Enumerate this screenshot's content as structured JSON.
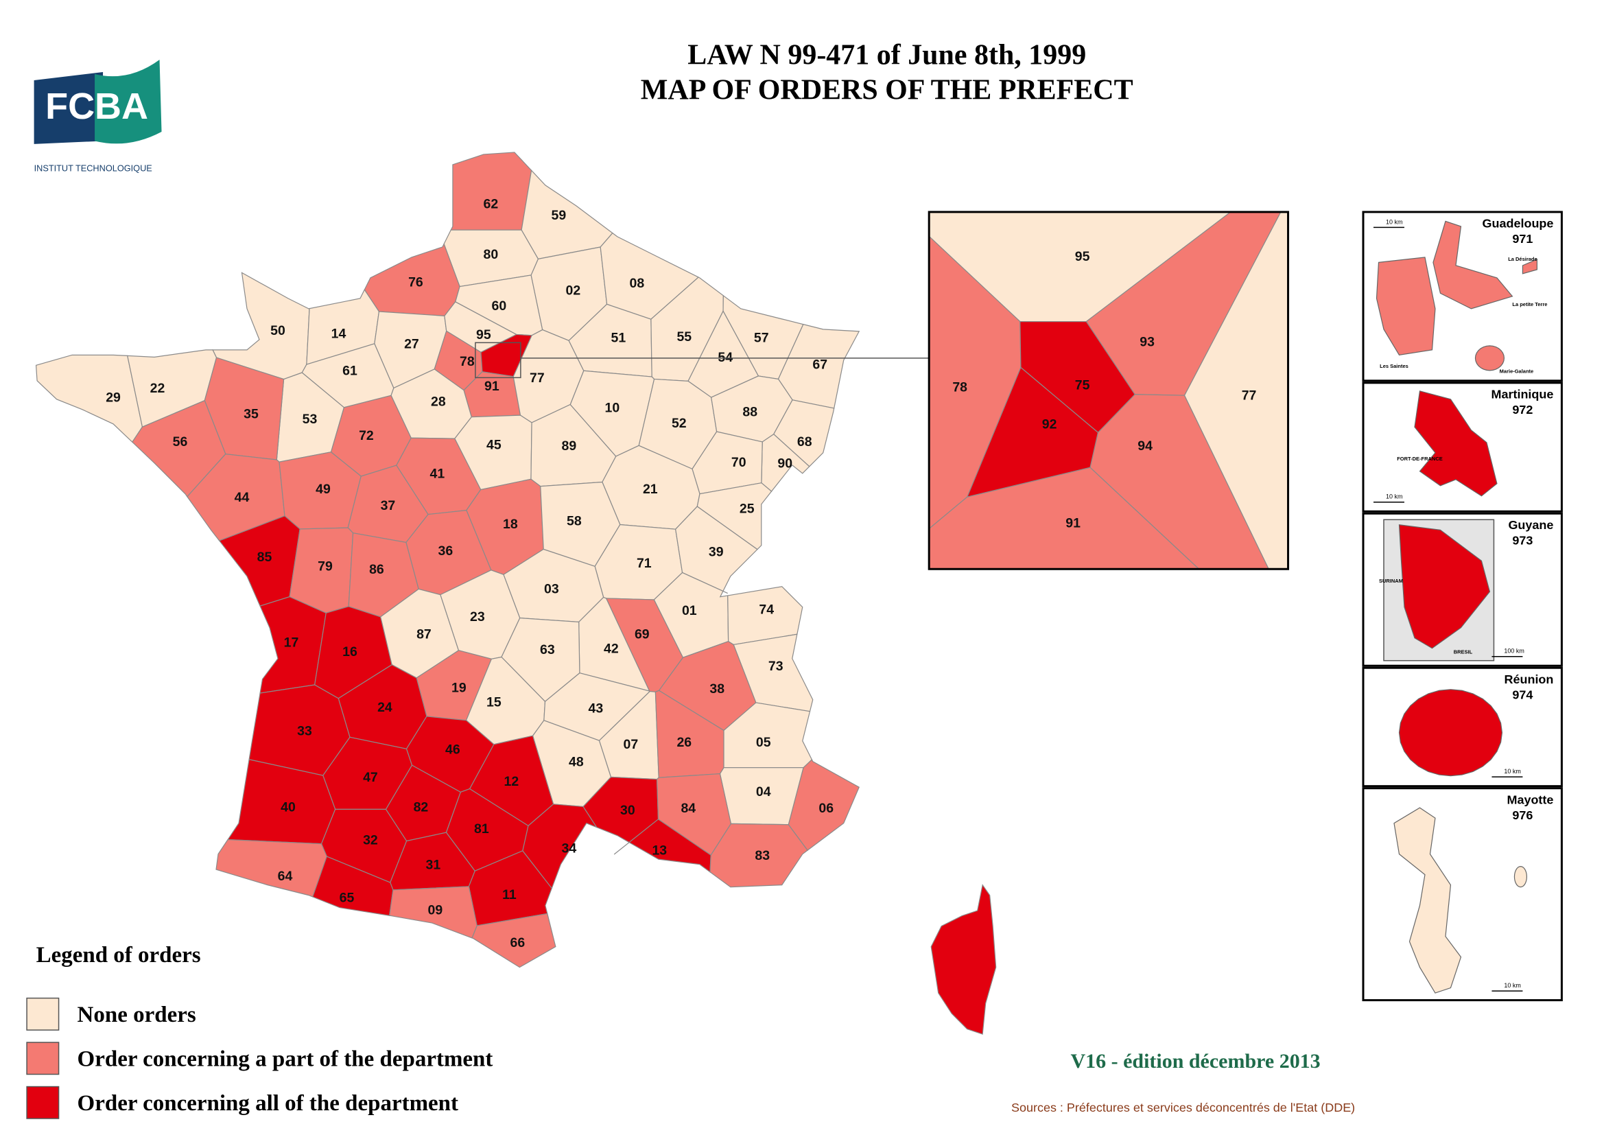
{
  "logo": {
    "name": "FCBA",
    "subtitle": "INSTITUT  TECHNOLOGIQUE"
  },
  "title": [
    "LAW N 99-471 of June 8th, 1999",
    "MAP OF ORDERS OF THE PREFECT"
  ],
  "legend": {
    "title": "Legend of orders",
    "items": [
      {
        "label": "None orders",
        "color": "#fde8d2"
      },
      {
        "label": "Order concerning a part of the department",
        "color": "#f47a72"
      },
      {
        "label": "Order concerning all of the department",
        "color": "#e2000f"
      }
    ]
  },
  "map": {
    "departments": [
      {
        "code": "62",
        "order": 1
      },
      {
        "code": "59",
        "order": 0
      },
      {
        "code": "80",
        "order": 0
      },
      {
        "code": "76",
        "order": 1
      },
      {
        "code": "60",
        "order": 0
      },
      {
        "code": "02",
        "order": 0
      },
      {
        "code": "08",
        "order": 0
      },
      {
        "code": "50",
        "order": 0
      },
      {
        "code": "14",
        "order": 0
      },
      {
        "code": "27",
        "order": 0
      },
      {
        "code": "95",
        "order": 0
      },
      {
        "code": "78",
        "order": 1
      },
      {
        "code": null,
        "order": 2
      },
      {
        "code": "91",
        "order": 1
      },
      {
        "code": "77",
        "order": 0
      },
      {
        "code": "51",
        "order": 0
      },
      {
        "code": "55",
        "order": 0
      },
      {
        "code": "57",
        "order": 0
      },
      {
        "code": "54",
        "order": 0
      },
      {
        "code": "67",
        "order": 0
      },
      {
        "code": "29",
        "order": 0
      },
      {
        "code": "22",
        "order": 0
      },
      {
        "code": "61",
        "order": 0
      },
      {
        "code": "28",
        "order": 0
      },
      {
        "code": "53",
        "order": 0
      },
      {
        "code": "35",
        "order": 1
      },
      {
        "code": "56",
        "order": 1
      },
      {
        "code": "72",
        "order": 1
      },
      {
        "code": "45",
        "order": 0
      },
      {
        "code": "89",
        "order": 0
      },
      {
        "code": "10",
        "order": 0
      },
      {
        "code": "52",
        "order": 0
      },
      {
        "code": "88",
        "order": 0
      },
      {
        "code": "68",
        "order": 0
      },
      {
        "code": "90",
        "order": 0
      },
      {
        "code": "70",
        "order": 0
      },
      {
        "code": "44",
        "order": 1
      },
      {
        "code": "49",
        "order": 1
      },
      {
        "code": "37",
        "order": 1
      },
      {
        "code": "41",
        "order": 1
      },
      {
        "code": "18",
        "order": 1
      },
      {
        "code": "21",
        "order": 0
      },
      {
        "code": "25",
        "order": 0
      },
      {
        "code": "85",
        "order": 2
      },
      {
        "code": "79",
        "order": 1
      },
      {
        "code": "86",
        "order": 1
      },
      {
        "code": "36",
        "order": 1
      },
      {
        "code": "58",
        "order": 0
      },
      {
        "code": "71",
        "order": 0
      },
      {
        "code": "39",
        "order": 0
      },
      {
        "code": "17",
        "order": 2
      },
      {
        "code": "16",
        "order": 2
      },
      {
        "code": "87",
        "order": 0
      },
      {
        "code": "23",
        "order": 0
      },
      {
        "code": "03",
        "order": 0
      },
      {
        "code": "01",
        "order": 0
      },
      {
        "code": "74",
        "order": 0
      },
      {
        "code": "69",
        "order": 1
      },
      {
        "code": "42",
        "order": 0
      },
      {
        "code": "63",
        "order": 0
      },
      {
        "code": "73",
        "order": 0
      },
      {
        "code": "38",
        "order": 1
      },
      {
        "code": "19",
        "order": 1
      },
      {
        "code": "24",
        "order": 2
      },
      {
        "code": "15",
        "order": 0
      },
      {
        "code": "43",
        "order": 0
      },
      {
        "code": "33",
        "order": 2
      },
      {
        "code": "46",
        "order": 2
      },
      {
        "code": "07",
        "order": 0
      },
      {
        "code": "26",
        "order": 1
      },
      {
        "code": "05",
        "order": 0
      },
      {
        "code": "48",
        "order": 0
      },
      {
        "code": "47",
        "order": 2
      },
      {
        "code": "12",
        "order": 2
      },
      {
        "code": "04",
        "order": 0
      },
      {
        "code": "40",
        "order": 2
      },
      {
        "code": "82",
        "order": 2
      },
      {
        "code": "30",
        "order": 2
      },
      {
        "code": "84",
        "order": 1
      },
      {
        "code": "06",
        "order": 1
      },
      {
        "code": "81",
        "order": 2
      },
      {
        "code": "32",
        "order": 2
      },
      {
        "code": "34",
        "order": 2
      },
      {
        "code": "13",
        "order": 2
      },
      {
        "code": "83",
        "order": 1
      },
      {
        "code": "31",
        "order": 2
      },
      {
        "code": "64",
        "order": 1
      },
      {
        "code": "11",
        "order": 2
      },
      {
        "code": "65",
        "order": 2
      },
      {
        "code": "09",
        "order": 1
      },
      {
        "code": "66",
        "order": 1
      }
    ],
    "corsica": {
      "order": 2
    }
  },
  "inset": {
    "departments": [
      {
        "code": "95",
        "order": 0
      },
      {
        "code": "77",
        "order": 0
      },
      {
        "code": "78",
        "order": 1
      },
      {
        "code": "93",
        "order": 1
      },
      {
        "code": "94",
        "order": 1
      },
      {
        "code": "91",
        "order": 1
      },
      {
        "code": "75",
        "order": 2
      },
      {
        "code": "92",
        "order": 2
      }
    ]
  },
  "overseas": [
    {
      "name": "Guadeloupe",
      "code": "971",
      "order": 1,
      "scale": "10 km",
      "places": [
        "La Désirade",
        "La petite Terre",
        "Les Saintes",
        "Marie-Galante"
      ]
    },
    {
      "name": "Martinique",
      "code": "972",
      "order": 2,
      "scale": "10 km",
      "places": [
        "FORT-DE-FRANCE"
      ]
    },
    {
      "name": "Guyane",
      "code": "973",
      "order": 2,
      "scale": "100 km",
      "places": [
        "SURINAM",
        "BRESIL"
      ]
    },
    {
      "name": "Réunion",
      "code": "974",
      "order": 2,
      "scale": "10 km",
      "places": []
    },
    {
      "name": "Mayotte",
      "code": "976",
      "order": 0,
      "scale": "10 km",
      "places": []
    }
  ],
  "edition": "V16  -  édition décembre 2013",
  "sources": "Sources : Préfectures et services déconcentrés de l'Etat (DDE)"
}
